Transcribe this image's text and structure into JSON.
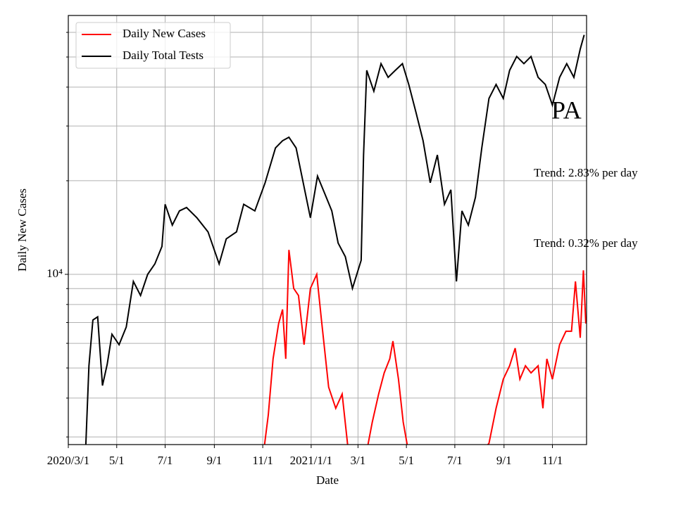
{
  "chart_data": {
    "type": "line",
    "xlabel": "Date",
    "ylabel": "Daily New Cases",
    "log_y": true,
    "grid": true,
    "legend": "upper left",
    "xlim": [
      "2020-03-01",
      "2021-12-14"
    ],
    "xticks": [
      {
        "value": "2020-03-01",
        "label": "2020/3/1"
      },
      {
        "value": "2020-05-01",
        "label": "5/1"
      },
      {
        "value": "2020-07-01",
        "label": "7/1"
      },
      {
        "value": "2020-09-01",
        "label": "9/1"
      },
      {
        "value": "2020-11-01",
        "label": "11/1"
      },
      {
        "value": "2021-01-01",
        "label": "2021/1/1"
      },
      {
        "value": "2021-03-01",
        "label": "3/1"
      },
      {
        "value": "2021-05-01",
        "label": "5/1"
      },
      {
        "value": "2021-07-01",
        "label": "7/1"
      },
      {
        "value": "2021-09-01",
        "label": "9/1"
      },
      {
        "value": "2021-11-01",
        "label": "11/1"
      }
    ],
    "ylim": [
      2835,
      68000
    ],
    "yticks": [
      {
        "value": 10000,
        "label": "10⁴"
      }
    ],
    "yminorticks": [
      3000,
      4000,
      5000,
      6000,
      7000,
      8000,
      9000,
      20000,
      30000,
      40000,
      50000,
      60000
    ],
    "annotations": [
      "PA",
      "Trend: 2.83% per day",
      "Trend: 0.32% per day"
    ],
    "series": [
      {
        "name": "Daily New Cases",
        "color": "#ff0000",
        "x": [
          "2020-11-03",
          "2020-11-08",
          "2020-11-14",
          "2020-11-21",
          "2020-11-26",
          "2020-11-30",
          "2020-12-04",
          "2020-12-10",
          "2020-12-16",
          "2020-12-23",
          "2020-12-31",
          "2021-01-08",
          "2021-01-14",
          "2021-01-23",
          "2021-02-01",
          "2021-02-09",
          "2021-02-16",
          "2021-02-22",
          "2021-03-12",
          "2021-03-19",
          "2021-03-27",
          "2021-04-03",
          "2021-04-10",
          "2021-04-14",
          "2021-04-21",
          "2021-04-27",
          "2021-05-02",
          "2021-05-09",
          "2021-06-15",
          "2021-08-13",
          "2021-08-22",
          "2021-08-31",
          "2021-09-08",
          "2021-09-15",
          "2021-09-21",
          "2021-09-28",
          "2021-10-05",
          "2021-10-14",
          "2021-10-20",
          "2021-10-25",
          "2021-11-01",
          "2021-11-10",
          "2021-11-18",
          "2021-11-25",
          "2021-11-30",
          "2021-12-06",
          "2021-12-10",
          "2021-12-13"
        ],
        "values": [
          2800,
          3530,
          5350,
          6950,
          7710,
          5350,
          11980,
          9010,
          8550,
          5940,
          9010,
          10000,
          7130,
          4340,
          3710,
          4120,
          2830,
          2580,
          2700,
          3350,
          4120,
          4820,
          5350,
          6100,
          4600,
          3350,
          2830,
          2450,
          2000,
          2860,
          3710,
          4600,
          5080,
          5790,
          4600,
          5080,
          4820,
          5080,
          3710,
          5350,
          4600,
          5940,
          6560,
          6560,
          9490,
          6250,
          10300,
          6950
        ]
      },
      {
        "name": "Daily Total Tests",
        "color": "#000000",
        "x": [
          "2020-03-23",
          "2020-03-27",
          "2020-04-01",
          "2020-04-07",
          "2020-04-13",
          "2020-04-19",
          "2020-04-25",
          "2020-05-04",
          "2020-05-13",
          "2020-05-22",
          "2020-05-31",
          "2020-06-09",
          "2020-06-18",
          "2020-06-27",
          "2020-07-01",
          "2020-07-10",
          "2020-07-19",
          "2020-07-28",
          "2020-08-10",
          "2020-08-24",
          "2020-09-07",
          "2020-09-16",
          "2020-09-29",
          "2020-10-08",
          "2020-10-22",
          "2020-11-04",
          "2020-11-17",
          "2020-11-26",
          "2020-12-04",
          "2020-12-13",
          "2020-12-22",
          "2020-12-31",
          "2021-01-09",
          "2021-01-18",
          "2021-01-27",
          "2021-02-04",
          "2021-02-13",
          "2021-02-22",
          "2021-03-05",
          "2021-03-08",
          "2021-03-12",
          "2021-03-21",
          "2021-03-30",
          "2021-04-08",
          "2021-04-17",
          "2021-04-26",
          "2021-05-04",
          "2021-05-13",
          "2021-05-22",
          "2021-05-31",
          "2021-06-09",
          "2021-06-18",
          "2021-06-26",
          "2021-07-03",
          "2021-07-10",
          "2021-07-18",
          "2021-07-27",
          "2021-08-04",
          "2021-08-13",
          "2021-08-22",
          "2021-08-31",
          "2021-09-08",
          "2021-09-17",
          "2021-09-26",
          "2021-10-05",
          "2021-10-14",
          "2021-10-23",
          "2021-11-01",
          "2021-11-10",
          "2021-11-19",
          "2021-11-28",
          "2021-12-06",
          "2021-12-11"
        ],
        "values": [
          2800,
          5080,
          7130,
          7300,
          4390,
          5130,
          6420,
          5940,
          6770,
          9490,
          8550,
          10000,
          10800,
          12300,
          16800,
          14400,
          16000,
          16400,
          15200,
          13700,
          10800,
          13000,
          13700,
          16800,
          16000,
          19700,
          25500,
          26900,
          27600,
          25500,
          19700,
          15200,
          20700,
          18200,
          16000,
          12600,
          11400,
          9010,
          11100,
          24200,
          45300,
          38800,
          47600,
          43000,
          45300,
          47600,
          40800,
          33200,
          26900,
          19700,
          24200,
          16800,
          18700,
          9490,
          16000,
          14400,
          17700,
          25500,
          36800,
          40800,
          36800,
          45300,
          50200,
          47600,
          50200,
          43000,
          40800,
          35000,
          43000,
          47600,
          43000,
          53000,
          58900
        ]
      }
    ]
  }
}
